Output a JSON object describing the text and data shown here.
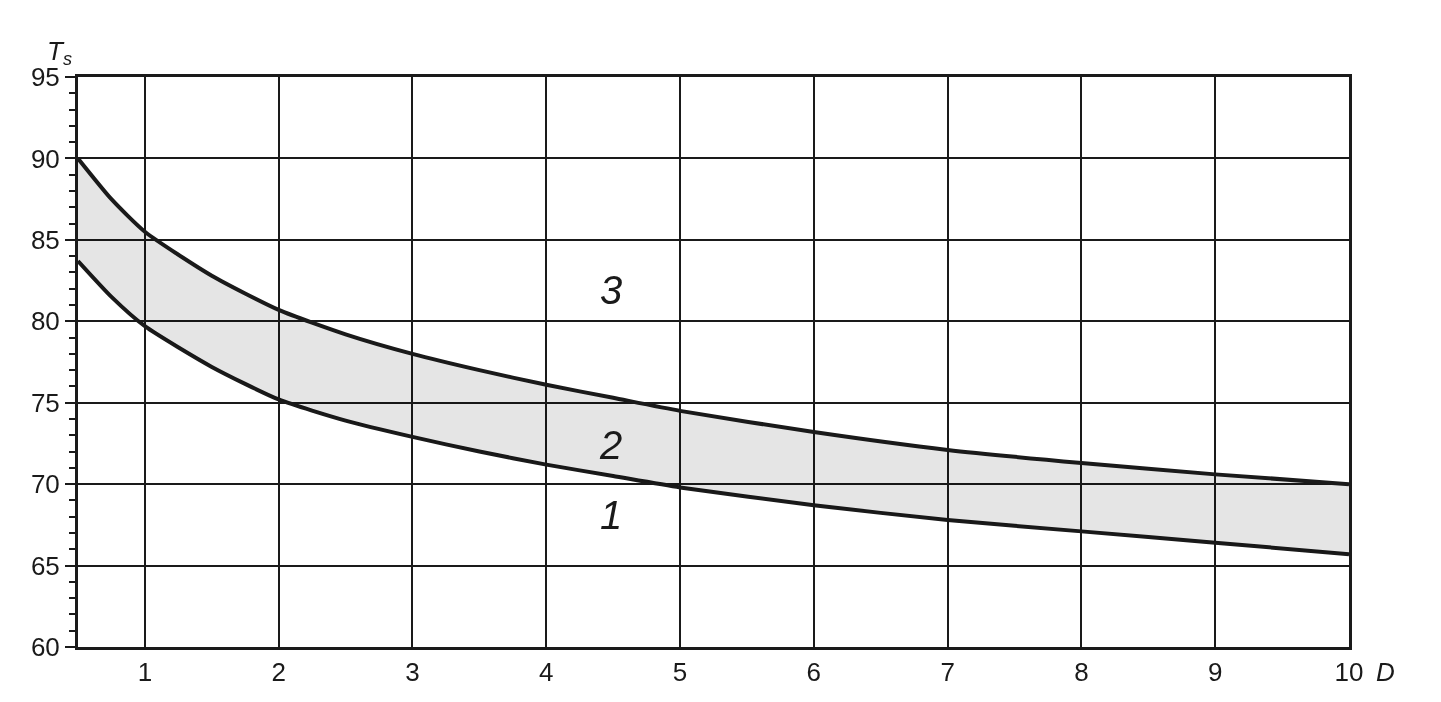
{
  "chart_data": {
    "type": "line",
    "xlabel": "D",
    "ylabel": "T$_{s}$",
    "x": [
      0.5,
      0.75,
      1,
      1.5,
      2,
      2.5,
      3,
      3.5,
      4,
      4.5,
      5,
      6,
      7,
      8,
      9,
      10
    ],
    "series": [
      {
        "color": "#1a1a1a",
        "values": [
          83.7,
          81.5,
          79.7,
          77.2,
          75.2,
          73.9,
          72.9,
          72,
          71.2,
          70.5,
          69.8,
          68.7,
          67.8,
          67.1,
          66.4,
          65.7
        ]
      },
      {
        "color": "#1a1a1a",
        "values": [
          90,
          87.5,
          85.5,
          82.8,
          80.7,
          79.2,
          78,
          77,
          76.1,
          75.3,
          74.5,
          73.2,
          72.1,
          71.3,
          70.6,
          70
        ],
        "lower": [
          83.7,
          81.5,
          79.7,
          77.2,
          75.2,
          73.9,
          72.9,
          72,
          71.2,
          70.5,
          69.8,
          68.7,
          67.8,
          67.1,
          66.4,
          65.7
        ],
        "upper": [
          90,
          87.5,
          85.5,
          82.8,
          80.7,
          79.2,
          78,
          77,
          76.1,
          75.3,
          74.5,
          73.2,
          72.1,
          71.3,
          70.6,
          70
        ]
      }
    ],
    "annotations": [
      "1",
      "2",
      "3"
    ],
    "xlim": [
      0.5,
      10
    ],
    "xticks": [
      1,
      2,
      3,
      4,
      5,
      6,
      7,
      8,
      9,
      10
    ],
    "ylim": [
      60,
      95
    ],
    "yticks": [
      60,
      65,
      70,
      75,
      80,
      85,
      90,
      95
    ],
    "grid": true,
    "marker": "none",
    "line_style": "solid"
  }
}
